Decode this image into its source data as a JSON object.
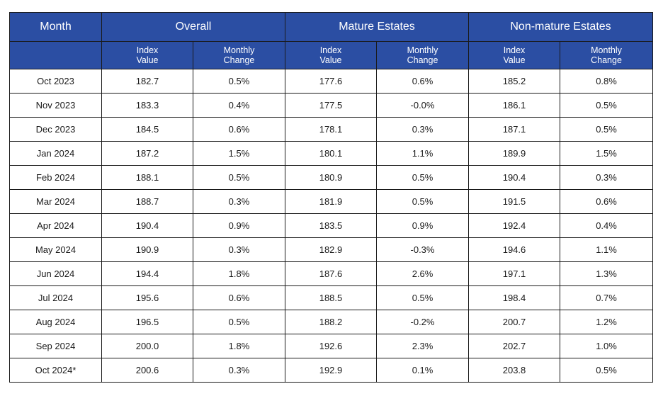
{
  "headers": {
    "month": "Month",
    "groups": [
      "Overall",
      "Mature Estates",
      "Non-mature Estates"
    ],
    "sub": [
      {
        "line1": "Index",
        "line2": "Value"
      },
      {
        "line1": "Monthly",
        "line2": "Change"
      },
      {
        "line1": "Index",
        "line2": "Value"
      },
      {
        "line1": "Monthly",
        "line2": "Change"
      },
      {
        "line1": "Index",
        "line2": "Value"
      },
      {
        "line1": "Monthly",
        "line2": "Change"
      }
    ]
  },
  "rows": [
    {
      "month": "Oct 2023",
      "cells": [
        "182.7",
        "0.5%",
        "177.6",
        "0.6%",
        "185.2",
        "0.8%"
      ]
    },
    {
      "month": "Nov 2023",
      "cells": [
        "183.3",
        "0.4%",
        "177.5",
        "-0.0%",
        "186.1",
        "0.5%"
      ]
    },
    {
      "month": "Dec 2023",
      "cells": [
        "184.5",
        "0.6%",
        "178.1",
        "0.3%",
        "187.1",
        "0.5%"
      ]
    },
    {
      "month": "Jan 2024",
      "cells": [
        "187.2",
        "1.5%",
        "180.1",
        "1.1%",
        "189.9",
        "1.5%"
      ]
    },
    {
      "month": "Feb 2024",
      "cells": [
        "188.1",
        "0.5%",
        "180.9",
        "0.5%",
        "190.4",
        "0.3%"
      ]
    },
    {
      "month": "Mar 2024",
      "cells": [
        "188.7",
        "0.3%",
        "181.9",
        "0.5%",
        "191.5",
        "0.6%"
      ]
    },
    {
      "month": "Apr 2024",
      "cells": [
        "190.4",
        "0.9%",
        "183.5",
        "0.9%",
        "192.4",
        "0.4%"
      ]
    },
    {
      "month": "May 2024",
      "cells": [
        "190.9",
        "0.3%",
        "182.9",
        "-0.3%",
        "194.6",
        "1.1%"
      ]
    },
    {
      "month": "Jun 2024",
      "cells": [
        "194.4",
        "1.8%",
        "187.6",
        "2.6%",
        "197.1",
        "1.3%"
      ]
    },
    {
      "month": "Jul 2024",
      "cells": [
        "195.6",
        "0.6%",
        "188.5",
        "0.5%",
        "198.4",
        "0.7%"
      ]
    },
    {
      "month": "Aug 2024",
      "cells": [
        "196.5",
        "0.5%",
        "188.2",
        "-0.2%",
        "200.7",
        "1.2%"
      ]
    },
    {
      "month": "Sep 2024",
      "cells": [
        "200.0",
        "1.8%",
        "192.6",
        "2.3%",
        "202.7",
        "1.0%"
      ]
    },
    {
      "month": "Oct 2024*",
      "cells": [
        "200.6",
        "0.3%",
        "192.9",
        "0.1%",
        "203.8",
        "0.5%"
      ]
    }
  ],
  "colors": {
    "header_bg": "#2b4ea3",
    "header_text": "#ffffff",
    "border": "#1a1a1a"
  }
}
